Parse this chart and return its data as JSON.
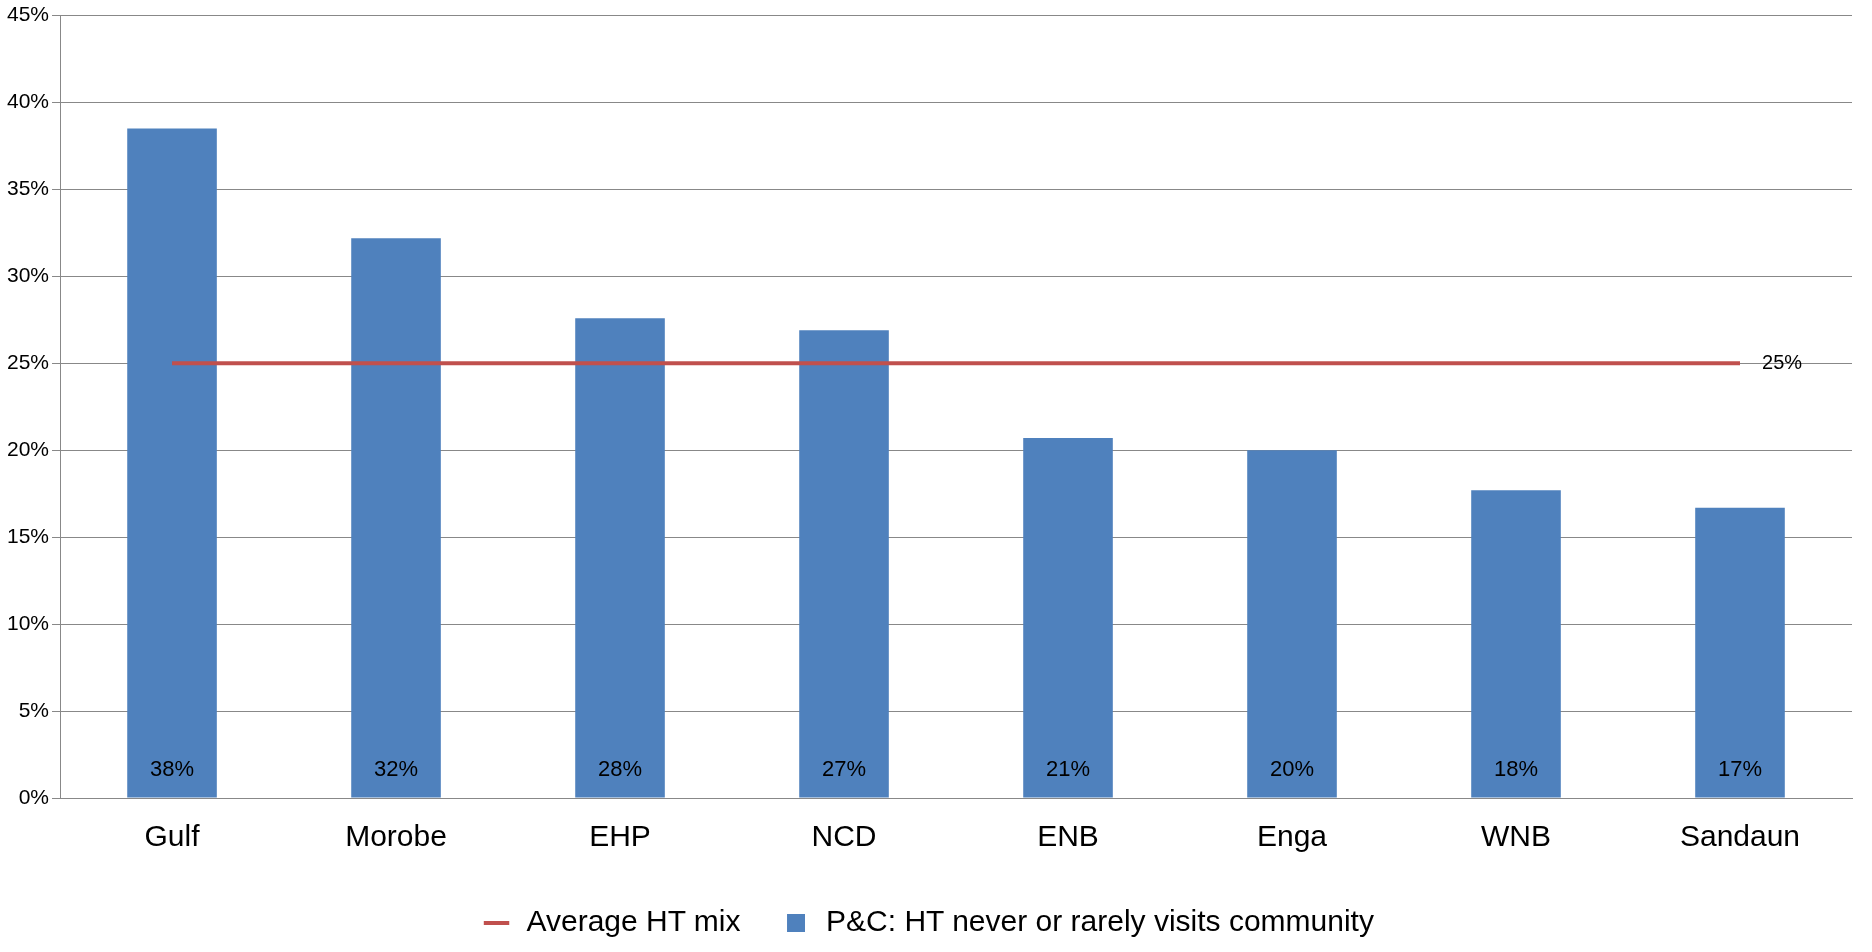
{
  "chart_data": {
    "type": "bar",
    "categories": [
      "Gulf",
      "Morobe",
      "EHP",
      "NCD",
      "ENB",
      "Enga",
      "WNB",
      "Sandaun"
    ],
    "series": [
      {
        "name": "P&C: HT never or rarely visits community",
        "color": "#4f81bd",
        "values": [
          38.5,
          32.2,
          27.6,
          26.9,
          20.7,
          20.0,
          17.7,
          16.7
        ],
        "value_labels": [
          "38%",
          "32%",
          "28%",
          "27%",
          "21%",
          "20%",
          "18%",
          "17%"
        ]
      },
      {
        "name": "Average HT mix",
        "type": "line",
        "color": "#c0504d",
        "marker": "none",
        "line_style": "solid",
        "values": [
          25,
          25,
          25,
          25,
          25,
          25,
          25,
          25
        ],
        "value_labels": [
          null,
          null,
          null,
          null,
          null,
          null,
          null,
          "25%"
        ]
      }
    ],
    "ylim": [
      0,
      45
    ],
    "yticks": [
      {
        "value": 0,
        "label": "0%"
      },
      {
        "value": 5,
        "label": "5%"
      },
      {
        "value": 10,
        "label": "10%"
      },
      {
        "value": 15,
        "label": "15%"
      },
      {
        "value": 20,
        "label": "20%"
      },
      {
        "value": 25,
        "label": "25%"
      },
      {
        "value": 30,
        "label": "30%"
      },
      {
        "value": 35,
        "label": "35%"
      },
      {
        "value": 40,
        "label": "40%"
      },
      {
        "value": 45,
        "label": "45%"
      }
    ],
    "grid": "y",
    "legend": "bottom"
  }
}
